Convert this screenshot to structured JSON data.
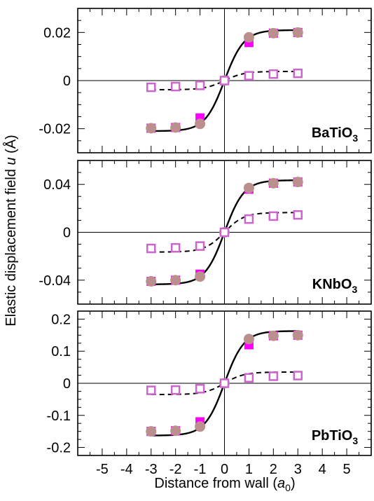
{
  "chart_data": {
    "type": "scatter",
    "xlabel": "Distance from wall",
    "xlabel_unit": "a",
    "xlabel_unit_sub": "0",
    "ylabel": "Elastic displacement field",
    "ylabel_symbol": "u",
    "ylabel_unit": "(Å)",
    "xlim": [
      -6,
      6
    ],
    "x_ticks": [
      -5,
      -4,
      -3,
      -2,
      -1,
      0,
      1,
      2,
      3,
      4,
      5
    ],
    "x_tick_labels": [
      "-5",
      "-4",
      "-3",
      "-2",
      "-1",
      "0",
      "1",
      "2",
      "3",
      "4",
      "5"
    ],
    "colors": {
      "filled_square": "#ff00ff",
      "filled_circle": "#bc8f8f",
      "open_square": "#cc66cc",
      "line": "#000000"
    },
    "panels": [
      {
        "material": "BaTiO",
        "material_sub": "3",
        "ylim": [
          -0.03,
          0.03
        ],
        "y_ticks": [
          -0.02,
          0,
          0.02
        ],
        "y_tick_labels": [
          "-0.02",
          "0",
          "0.02"
        ],
        "curve_solid_amplitude": 0.021,
        "curve_dashed_amplitude": 0.0038,
        "series": [
          {
            "marker": "filled-square",
            "x": [
              -3,
              -2,
              -1,
              0,
              1,
              2,
              3
            ],
            "y": [
              -0.0198,
              -0.0195,
              -0.0155,
              0,
              0.0158,
              0.0197,
              0.02
            ]
          },
          {
            "marker": "filled-circle",
            "x": [
              -3,
              -2,
              -1,
              0,
              1,
              2,
              3
            ],
            "y": [
              -0.0198,
              -0.0195,
              -0.018,
              0,
              0.018,
              0.0197,
              0.02
            ]
          },
          {
            "marker": "open-square",
            "x": [
              -3,
              -2,
              -1,
              0,
              1,
              2,
              3
            ],
            "y": [
              -0.0028,
              -0.0025,
              -0.002,
              0,
              0.002,
              0.0027,
              0.003
            ]
          }
        ]
      },
      {
        "material": "KNbO",
        "material_sub": "3",
        "ylim": [
          -0.06,
          0.06
        ],
        "y_ticks": [
          -0.04,
          0,
          0.04
        ],
        "y_tick_labels": [
          "-0.04",
          "0",
          "0.04"
        ],
        "curve_solid_amplitude": 0.0435,
        "curve_dashed_amplitude": 0.0165,
        "series": [
          {
            "marker": "filled-square",
            "x": [
              -3,
              -2,
              -1,
              0,
              1,
              2,
              3
            ],
            "y": [
              -0.041,
              -0.04,
              -0.035,
              0,
              0.036,
              0.041,
              0.042
            ]
          },
          {
            "marker": "filled-circle",
            "x": [
              -3,
              -2,
              -1,
              0,
              1,
              2,
              3
            ],
            "y": [
              -0.041,
              -0.04,
              -0.037,
              0,
              0.037,
              0.041,
              0.042
            ]
          },
          {
            "marker": "open-square",
            "x": [
              -3,
              -2,
              -1,
              0,
              1,
              2,
              3
            ],
            "y": [
              -0.0135,
              -0.013,
              -0.0115,
              0,
              0.011,
              0.0135,
              0.0145
            ]
          }
        ]
      },
      {
        "material": "PbTiO",
        "material_sub": "3",
        "ylim": [
          -0.225,
          0.225
        ],
        "y_ticks": [
          -0.2,
          -0.1,
          0,
          0.1,
          0.2
        ],
        "y_tick_labels": [
          "-0.2",
          "-0.1",
          "0",
          "0.1",
          "0.2"
        ],
        "curve_solid_amplitude": 0.163,
        "curve_dashed_amplitude": 0.035,
        "series": [
          {
            "marker": "filled-square",
            "x": [
              -3,
              -2,
              -1,
              0,
              1,
              2,
              3
            ],
            "y": [
              -0.15,
              -0.148,
              -0.12,
              0,
              0.12,
              0.148,
              0.15
            ]
          },
          {
            "marker": "filled-circle",
            "x": [
              -3,
              -2,
              -1,
              0,
              1,
              2,
              3
            ],
            "y": [
              -0.15,
              -0.148,
              -0.135,
              0,
              0.138,
              0.148,
              0.15
            ]
          },
          {
            "marker": "open-square",
            "x": [
              -3,
              -2,
              -1,
              0,
              1,
              2,
              3
            ],
            "y": [
              -0.022,
              -0.021,
              -0.017,
              0,
              0.017,
              0.022,
              0.024
            ]
          }
        ]
      }
    ]
  }
}
